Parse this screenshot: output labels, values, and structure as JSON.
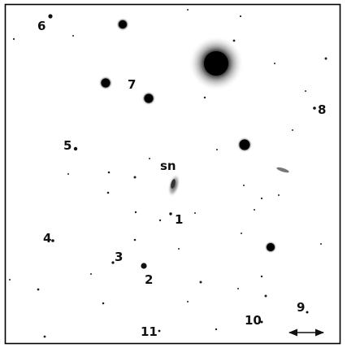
{
  "image": {
    "kind": "astronomical finding chart (negative print)",
    "colors": {
      "background": "#ffffff",
      "stars": "#0b0b0b",
      "border": "#000000"
    }
  },
  "labels": {
    "sn": "sn",
    "l1": "1",
    "l2": "2",
    "l3": "3",
    "l4": "4",
    "l5": "5",
    "l6": "6",
    "l7": "7",
    "l8": "8",
    "l9": "9",
    "l10": "10",
    "l11": "11"
  },
  "scale_bar": {
    "style": "double-headed arrow"
  }
}
